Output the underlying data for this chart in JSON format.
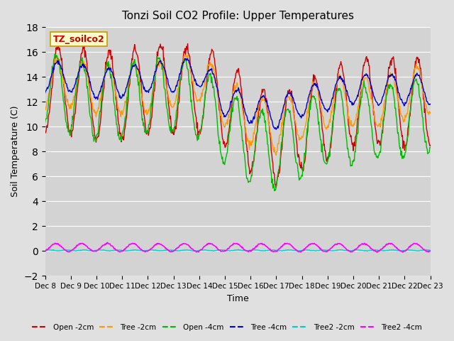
{
  "title": "Tonzi Soil CO2 Profile: Upper Temperatures",
  "xlabel": "Time",
  "ylabel": "Soil Temperature (C)",
  "ylim": [
    -2,
    18
  ],
  "yticks": [
    -2,
    0,
    2,
    4,
    6,
    8,
    10,
    12,
    14,
    16,
    18
  ],
  "xtick_labels": [
    "Dec 8",
    "Dec 9",
    "Dec 10",
    "Dec 11",
    "Dec 12",
    "Dec 13",
    "Dec 14",
    "Dec 15",
    "Dec 16",
    "Dec 17",
    "Dec 18",
    "Dec 19",
    "Dec 20",
    "Dec 21",
    "Dec 22",
    "Dec 23"
  ],
  "background_color": "#e0e0e0",
  "plot_bg_color": "#d3d3d3",
  "grid_color": "#ffffff",
  "series_colors": {
    "open_2cm": "#cc0000",
    "tree_2cm": "#ff9900",
    "open_4cm": "#00bb00",
    "tree_4cm": "#0000cc",
    "tree2_2cm": "#00cccc",
    "tree2_4cm": "#ff00ff"
  },
  "legend_labels": [
    "Open -2cm",
    "Tree -2cm",
    "Open -4cm",
    "Tree -4cm",
    "Tree2 -2cm",
    "Tree2 -4cm"
  ],
  "annotation_text": "TZ_soilco2",
  "annotation_color": "#cc0000",
  "annotation_bg": "#ffffcc",
  "annotation_border": "#cc9900",
  "n_days": 15,
  "pts_per_day": 48
}
